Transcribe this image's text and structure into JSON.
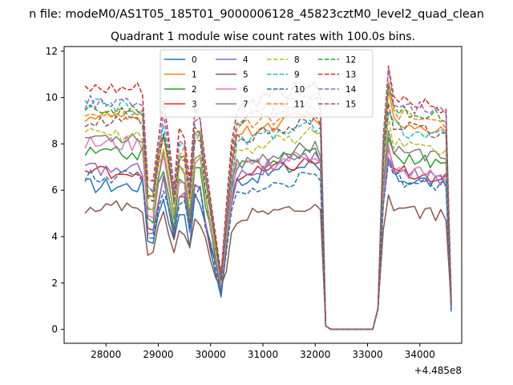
{
  "suptitle": "n file: modeM0/AS1T05_185T01_9000006128_45823cztM0_level2_quad_clean",
  "chart_data": {
    "type": "line",
    "title": "Quadrant 1 module wise count rates with 100.0s bins.",
    "xlabel": "",
    "ylabel": "",
    "x_offset_label": "+4.485e8",
    "xlim": [
      27200,
      34800
    ],
    "ylim": [
      -0.6,
      12.2
    ],
    "xticks": [
      28000,
      29000,
      30000,
      31000,
      32000,
      33000,
      34000
    ],
    "xtick_labels": [
      "28000",
      "29000",
      "30000",
      "31000",
      "32000",
      "33000",
      "34000"
    ],
    "yticks": [
      0,
      2,
      4,
      6,
      8,
      10,
      12
    ],
    "ytick_labels": [
      "0",
      "2",
      "4",
      "6",
      "8",
      "10",
      "12"
    ],
    "grid": false,
    "legend_position": "top-center",
    "legend_columns": 4,
    "colors": {
      "c0": "#1f77b4",
      "c1": "#ff7f0e",
      "c2": "#2ca02c",
      "c3": "#d62728",
      "c4": "#9467bd",
      "c5": "#8c564b",
      "c6": "#e377c2",
      "c7": "#7f7f7f",
      "c8": "#bcbd22",
      "c9": "#17becf"
    },
    "series": [
      {
        "name": "0",
        "color": "#1f77b4",
        "dashed": false,
        "level_a": 6.2,
        "level_b": 6.4,
        "level_c": 6.6,
        "dip_min": 1.4,
        "noise": 0.35
      },
      {
        "name": "1",
        "color": "#ff7f0e",
        "dashed": false,
        "level_a": 9.2,
        "level_b": 8.3,
        "level_c": 9.0,
        "dip_min": 2.0,
        "noise": 0.3
      },
      {
        "name": "2",
        "color": "#2ca02c",
        "dashed": false,
        "level_a": 7.6,
        "level_b": 6.9,
        "level_c": 7.5,
        "dip_min": 1.8,
        "noise": 0.3
      },
      {
        "name": "3",
        "color": "#d62728",
        "dashed": false,
        "level_a": 6.8,
        "level_b": 6.5,
        "level_c": 6.9,
        "dip_min": 1.6,
        "noise": 0.3
      },
      {
        "name": "4",
        "color": "#9467bd",
        "dashed": false,
        "level_a": 6.9,
        "level_b": 6.6,
        "level_c": 6.8,
        "dip_min": 1.7,
        "noise": 0.3
      },
      {
        "name": "5",
        "color": "#8c564b",
        "dashed": false,
        "level_a": 5.3,
        "level_b": 4.8,
        "level_c": 5.2,
        "dip_min": 1.9,
        "noise": 0.3
      },
      {
        "name": "6",
        "color": "#e377c2",
        "dashed": false,
        "level_a": 8.0,
        "level_b": 6.8,
        "level_c": 6.9,
        "dip_min": 1.9,
        "noise": 0.35
      },
      {
        "name": "7",
        "color": "#7f7f7f",
        "dashed": false,
        "level_a": 8.3,
        "level_b": 7.1,
        "level_c": 7.8,
        "dip_min": 2.0,
        "noise": 0.3
      },
      {
        "name": "8",
        "color": "#bcbd22",
        "dashed": true,
        "level_a": 8.4,
        "level_b": 7.6,
        "level_c": 8.1,
        "dip_min": 2.0,
        "noise": 0.3
      },
      {
        "name": "9",
        "color": "#17becf",
        "dashed": true,
        "level_a": 9.6,
        "level_b": 7.9,
        "level_c": 8.7,
        "dip_min": 2.1,
        "noise": 0.35
      },
      {
        "name": "10",
        "color": "#1f77b4",
        "dashed": true,
        "level_a": 6.6,
        "level_b": 5.9,
        "level_c": 6.5,
        "dip_min": 1.6,
        "noise": 0.3
      },
      {
        "name": "11",
        "color": "#ff7f0e",
        "dashed": true,
        "level_a": 9.3,
        "level_b": 8.6,
        "level_c": 9.4,
        "dip_min": 2.1,
        "noise": 0.3
      },
      {
        "name": "12",
        "color": "#2ca02c",
        "dashed": true,
        "level_a": 9.4,
        "level_b": 8.9,
        "level_c": 9.6,
        "dip_min": 2.2,
        "noise": 0.3
      },
      {
        "name": "13",
        "color": "#d62728",
        "dashed": true,
        "level_a": 10.3,
        "level_b": 9.5,
        "level_c": 10.1,
        "dip_min": 2.4,
        "noise": 0.35
      },
      {
        "name": "14",
        "color": "#9467bd",
        "dashed": true,
        "level_a": 9.8,
        "level_b": 9.1,
        "level_c": 9.8,
        "dip_min": 2.3,
        "noise": 0.3
      },
      {
        "name": "15",
        "color": "#8c564b",
        "dashed": true,
        "level_a": 8.9,
        "level_b": 8.1,
        "level_c": 8.8,
        "dip_min": 2.1,
        "noise": 0.3
      }
    ]
  }
}
